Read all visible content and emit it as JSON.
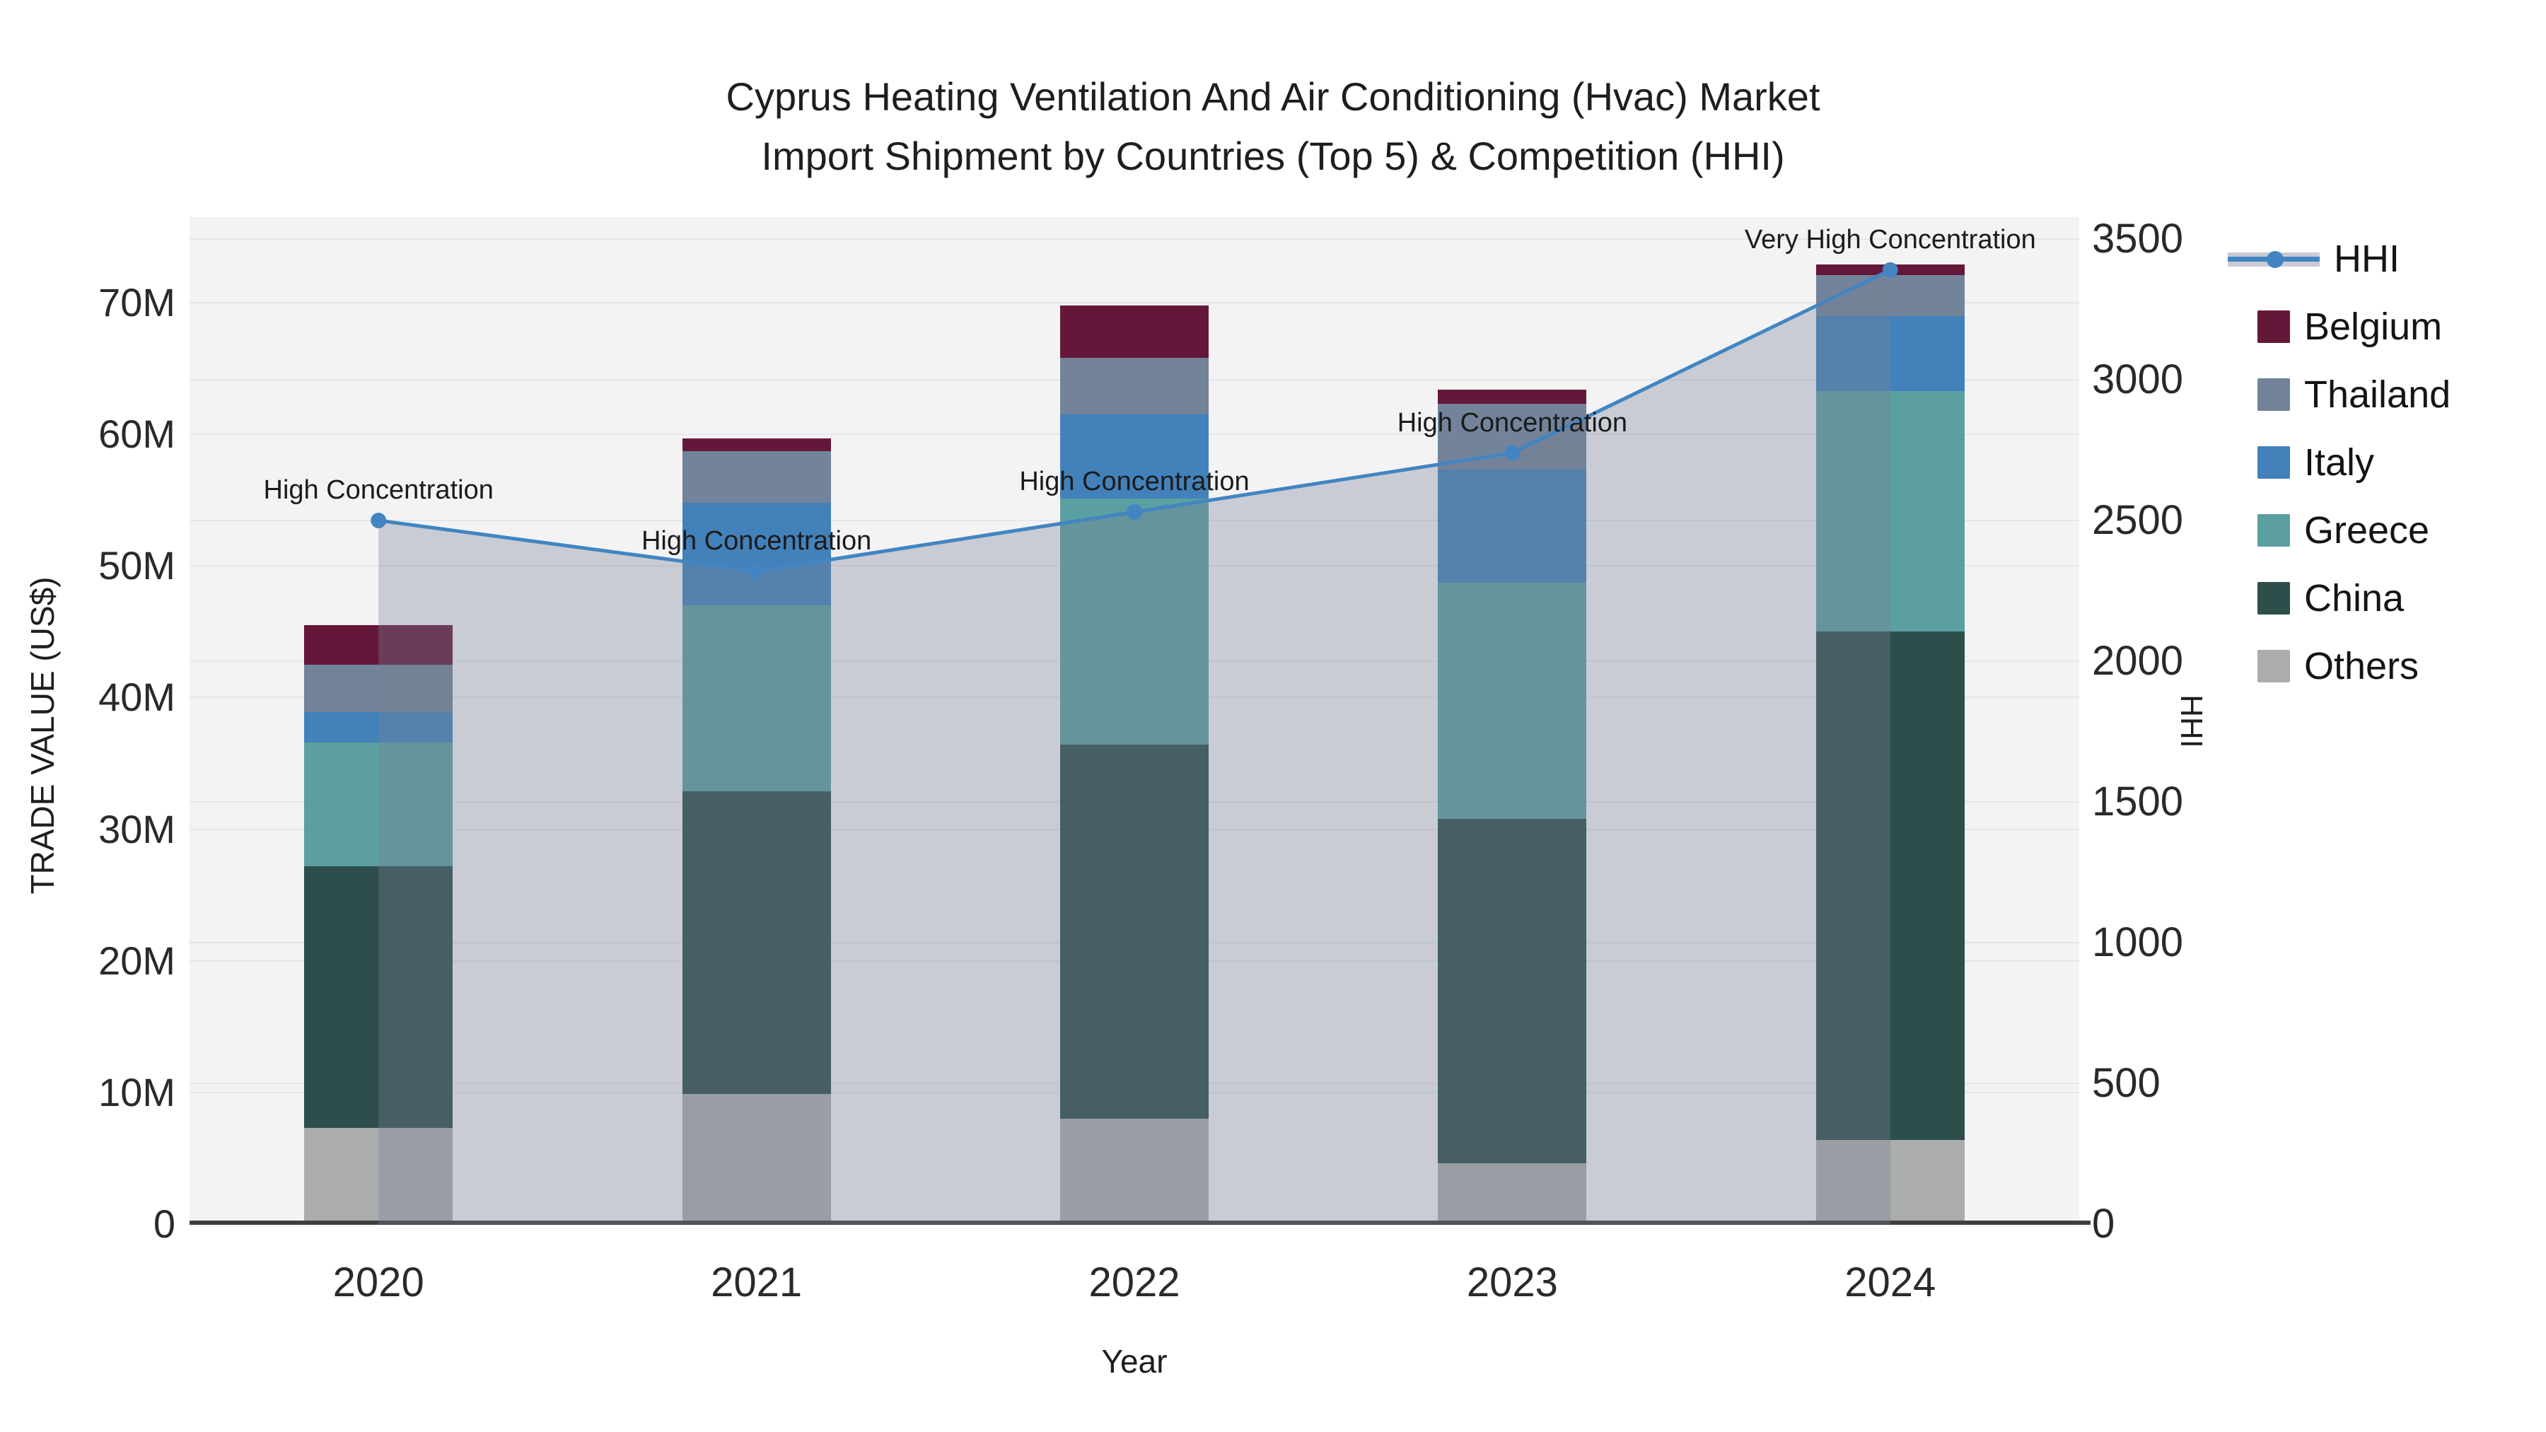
{
  "title": {
    "line1": "Cyprus Heating Ventilation And Air Conditioning (Hvac) Market",
    "line2": "Import Shipment by Countries (Top 5) & Competition (HHI)"
  },
  "chart_data": {
    "type": "bar",
    "subtype": "stacked-bars-with-line-area-overlay",
    "categories": [
      "2020",
      "2021",
      "2022",
      "2023",
      "2024"
    ],
    "values_unit": "million US$",
    "stack_order_bottom_to_top": [
      "Others",
      "China",
      "Greece",
      "Italy",
      "Thailand",
      "Belgium"
    ],
    "series": [
      {
        "name": "Others",
        "values": [
          7.3,
          9.9,
          8.0,
          4.6,
          6.4
        ]
      },
      {
        "name": "China",
        "values": [
          19.9,
          23.0,
          28.4,
          26.2,
          38.6
        ]
      },
      {
        "name": "Greece",
        "values": [
          9.4,
          14.1,
          18.7,
          17.9,
          18.3
        ]
      },
      {
        "name": "Italy",
        "values": [
          2.3,
          7.8,
          6.4,
          8.6,
          5.7
        ]
      },
      {
        "name": "Thailand",
        "values": [
          3.6,
          3.9,
          4.3,
          5.0,
          3.1
        ]
      },
      {
        "name": "Belgium",
        "values": [
          3.0,
          1.0,
          4.0,
          1.1,
          0.8
        ]
      }
    ],
    "line_series": {
      "name": "HHI",
      "values": [
        2500,
        2320,
        2530,
        2740,
        3390
      ],
      "axis": "right",
      "has_area_fill": true,
      "has_markers": true
    },
    "annotations": [
      {
        "category": "2020",
        "text": "High Concentration"
      },
      {
        "category": "2021",
        "text": "High Concentration"
      },
      {
        "category": "2022",
        "text": "High Concentration"
      },
      {
        "category": "2023",
        "text": "High Concentration"
      },
      {
        "category": "2024",
        "text": "Very High Concentration"
      }
    ],
    "left_axis": {
      "title": "TRADE VALUE (US$)",
      "tick_labels": [
        "0",
        "10M",
        "20M",
        "30M",
        "40M",
        "50M",
        "60M",
        "70M"
      ],
      "tick_values": [
        0,
        10,
        20,
        30,
        40,
        50,
        60,
        70
      ],
      "range_max": 76.5
    },
    "right_axis": {
      "title": "HHI",
      "tick_labels": [
        "0",
        "500",
        "1000",
        "1500",
        "2000",
        "2500",
        "3000",
        "3500"
      ],
      "tick_values": [
        0,
        500,
        1000,
        1500,
        2000,
        2500,
        3000,
        3500
      ],
      "range_max": 3578
    },
    "x_axis": {
      "title": "Year"
    },
    "legend_order": [
      "HHI",
      "Belgium",
      "Thailand",
      "Italy",
      "Greece",
      "China",
      "Others"
    ],
    "grid": true,
    "legend_position": "outside-top-right"
  },
  "colors": {
    "Belgium": "#641839",
    "Thailand": "#72839a",
    "Italy": "#4381ba",
    "Greece": "#5c9fa1",
    "China": "#2d4e4b",
    "Others": "#abacac",
    "HHI_line": "#4285c2",
    "HHI_area": "rgba(120,130,150,0.34)",
    "HHI_legend_band": "#c9ccd4",
    "plot_background": "#f3f3f4",
    "gridline": "#e4e6e9",
    "axis_line": "#3f3f3f",
    "text": "#1e1e1e"
  }
}
